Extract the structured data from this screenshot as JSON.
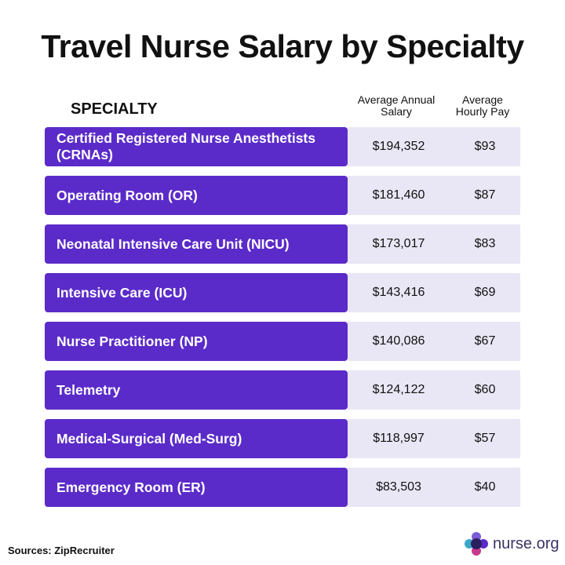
{
  "title": "Travel Nurse Salary by Specialty",
  "headers": {
    "specialty": "SPECIALTY",
    "salary": "Average Annual Salary",
    "hourly": "Average Hourly Pay"
  },
  "rows": [
    {
      "specialty": "Certified Registered Nurse Anesthetists (CRNAs)",
      "salary": "$194,352",
      "hourly": "$93"
    },
    {
      "specialty": "Operating Room (OR)",
      "salary": "$181,460",
      "hourly": "$87"
    },
    {
      "specialty": "Neonatal Intensive Care Unit (NICU)",
      "salary": "$173,017",
      "hourly": "$83"
    },
    {
      "specialty": "Intensive Care (ICU)",
      "salary": "$143,416",
      "hourly": "$69"
    },
    {
      "specialty": "Nurse Practitioner (NP)",
      "salary": "$140,086",
      "hourly": "$67"
    },
    {
      "specialty": "Telemetry",
      "salary": "$124,122",
      "hourly": "$60"
    },
    {
      "specialty": "Medical-Surgical (Med-Surg)",
      "salary": "$118,997",
      "hourly": "$57"
    },
    {
      "specialty": "Emergency Room (ER)",
      "salary": "$83,503",
      "hourly": "$40"
    }
  ],
  "footer": {
    "sources": "Sources: ZipRecruiter",
    "logo_text": "nurse.org"
  },
  "colors": {
    "accent": "#5b2bc9",
    "band": "#e9e7f5"
  }
}
